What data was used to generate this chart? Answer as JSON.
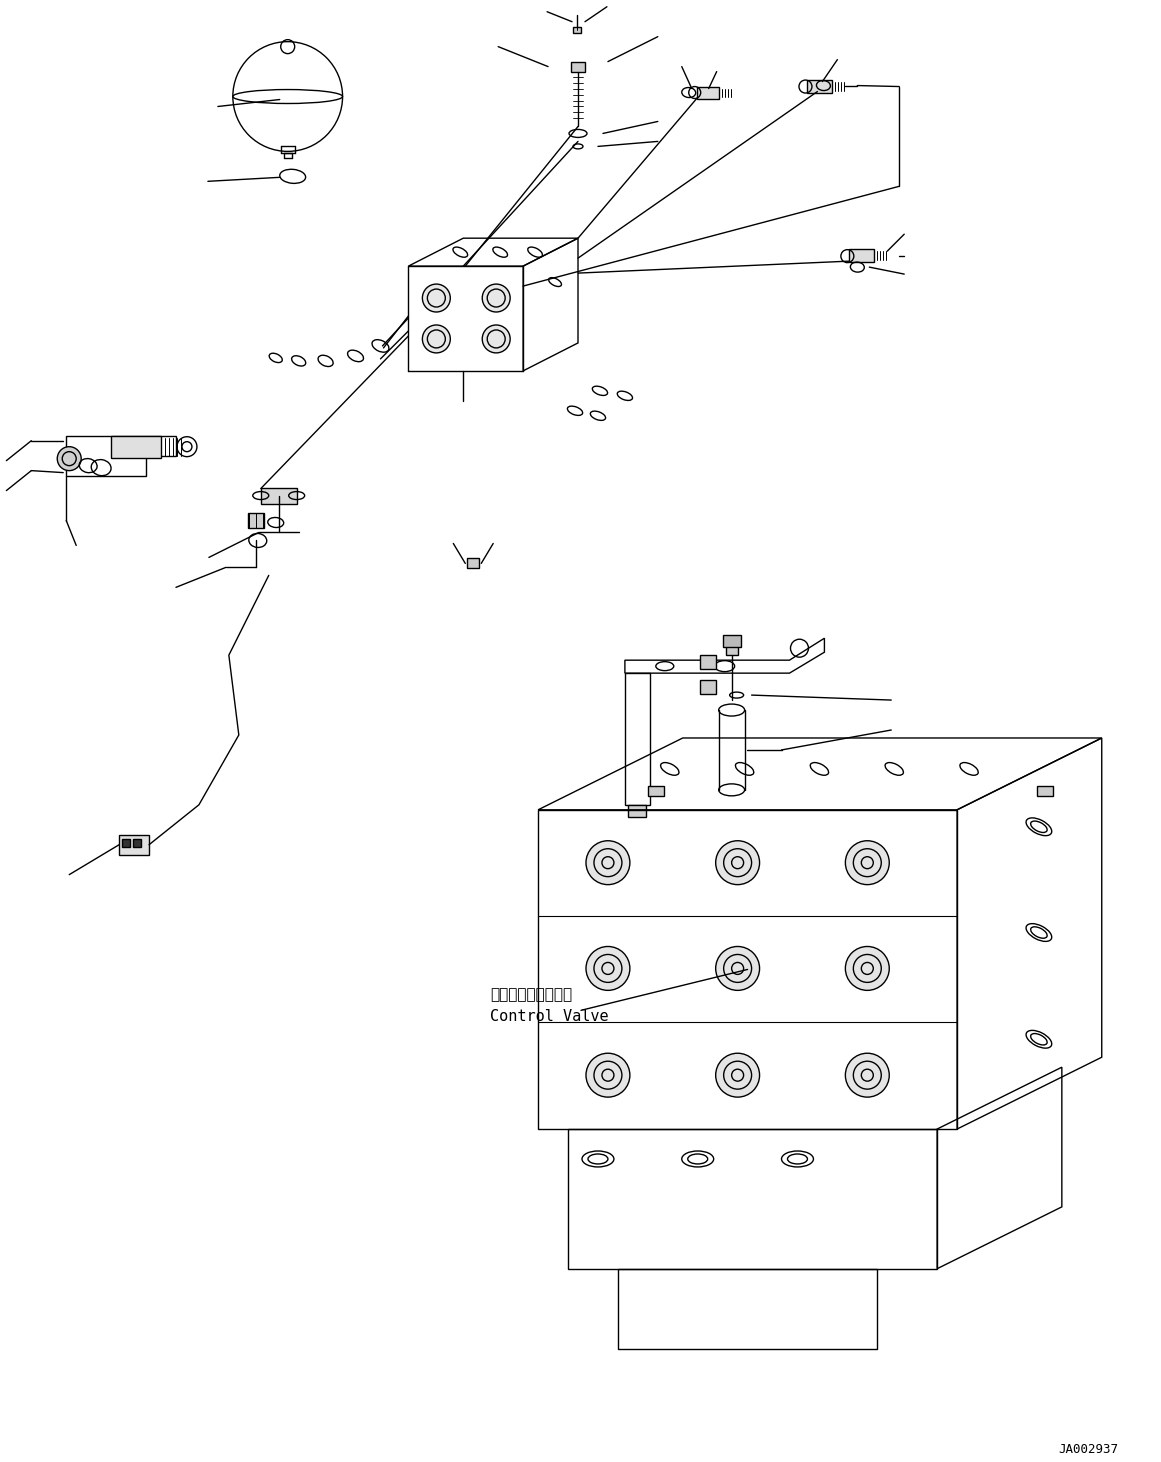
{
  "background_color": "#ffffff",
  "line_color": "#000000",
  "lw": 1.0,
  "fig_width": 11.61,
  "fig_height": 14.62,
  "dpi": 100,
  "watermark": "JA002937",
  "label_cv_jp": "コントロールバルブ",
  "label_cv_en": "Control Valve"
}
